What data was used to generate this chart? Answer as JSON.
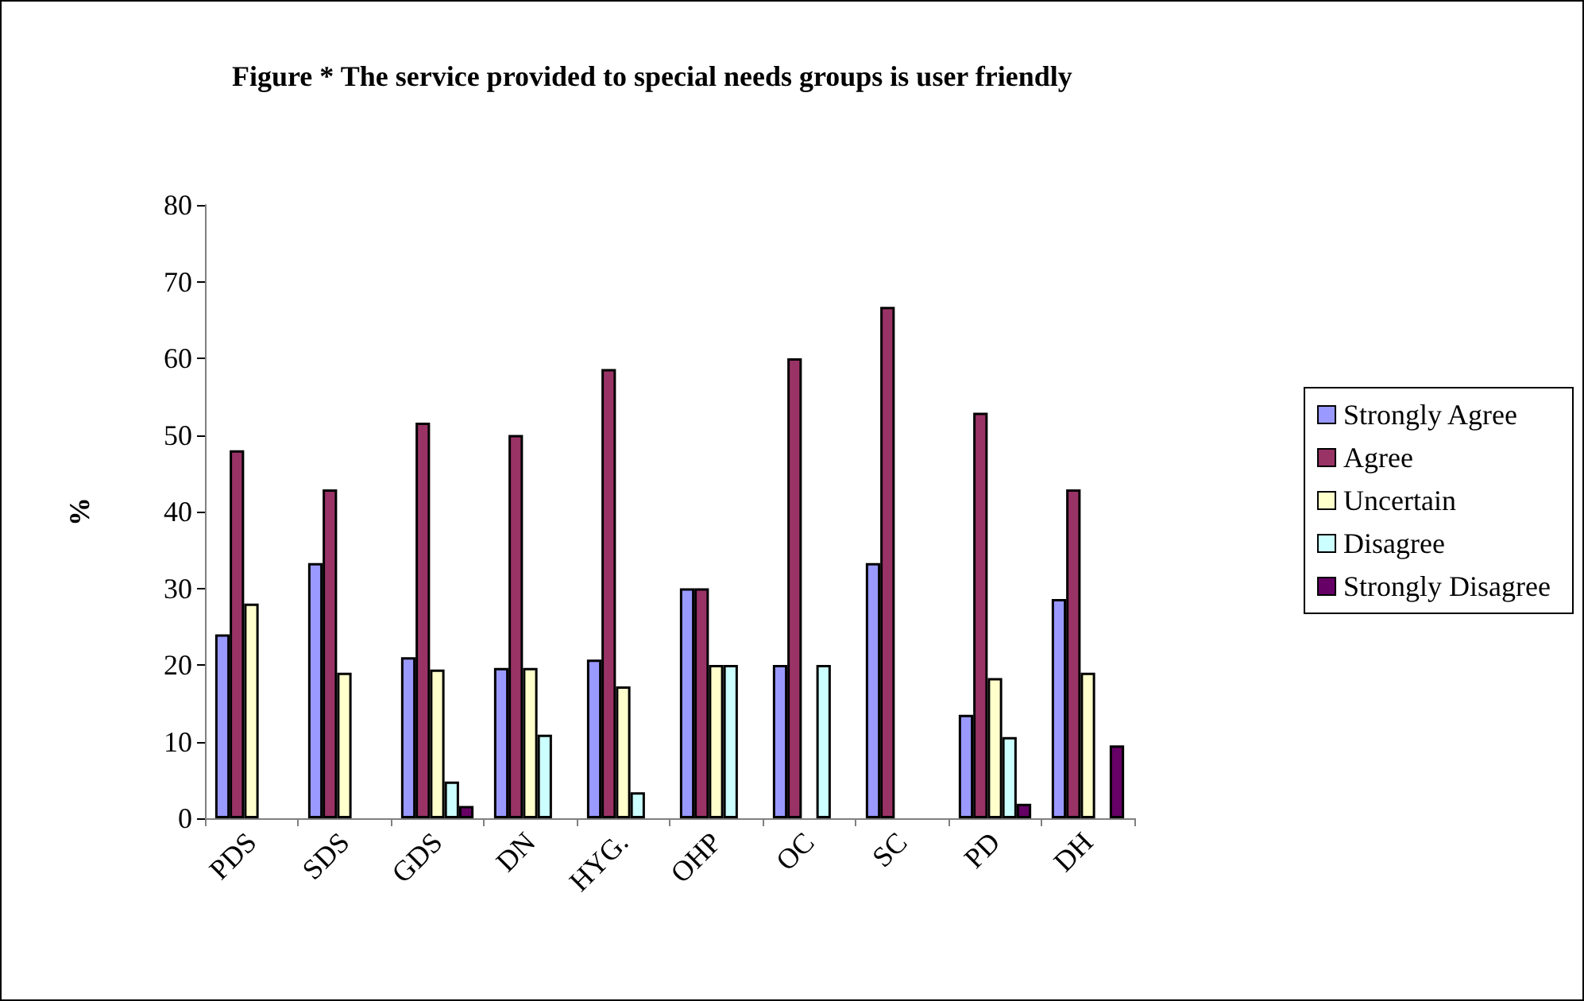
{
  "chart_data": {
    "type": "bar",
    "title": "Figure * The service provided to special needs groups is user friendly",
    "ylabel": "%",
    "categories": [
      "PDS",
      "SDS",
      "GDS",
      "DN",
      "HYG.",
      "OHP",
      "OC",
      "SC",
      "PD",
      "DH"
    ],
    "series": [
      {
        "name": "Strongly Agree",
        "color": "#9999ff",
        "values": [
          24,
          33.3,
          21,
          19.6,
          20.7,
          30,
          20,
          33.3,
          13.5,
          28.6
        ]
      },
      {
        "name": "Agree",
        "color": "#993366",
        "values": [
          48,
          42.9,
          51.6,
          50,
          58.6,
          30,
          60,
          66.7,
          52.9,
          42.9
        ]
      },
      {
        "name": "Uncertain",
        "color": "#ffffcc",
        "values": [
          28,
          19,
          19.4,
          19.6,
          17.2,
          20,
          null,
          null,
          18.3,
          19
        ]
      },
      {
        "name": "Disagree",
        "color": "#ccffff",
        "values": [
          null,
          null,
          4.8,
          10.9,
          3.4,
          20,
          20,
          null,
          10.6,
          null
        ]
      },
      {
        "name": "Strongly Disagree",
        "color": "#660066",
        "values": [
          null,
          null,
          1.6,
          null,
          null,
          null,
          null,
          null,
          1.9,
          9.5
        ]
      }
    ],
    "ylim": [
      0,
      80
    ],
    "yticks": [
      0,
      10,
      20,
      30,
      40,
      50,
      60,
      70,
      80
    ],
    "grid": false,
    "legend": "right"
  }
}
